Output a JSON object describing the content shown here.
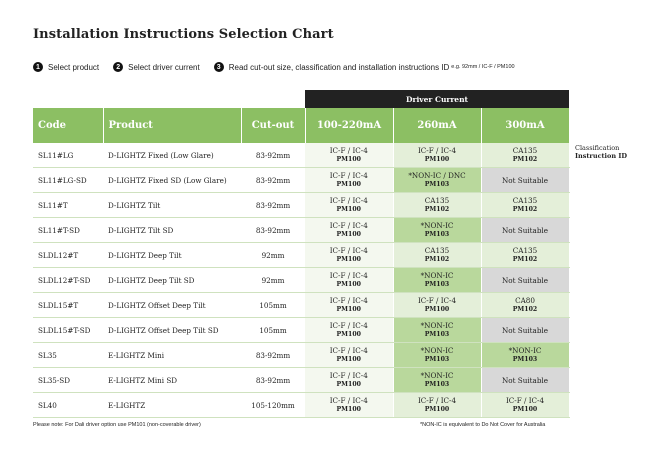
{
  "title": "Installation Instructions Selection Chart",
  "steps": [
    {
      "num": "1",
      "label": "Select product"
    },
    {
      "num": "2",
      "label": "Select driver current"
    },
    {
      "num": "3",
      "label": "Read cut-out size, classification and installation instructions ID"
    }
  ],
  "example": "e.g. 92mm / IC-F / PM100",
  "driver_current_label": "Driver Current",
  "columns": [
    "Code",
    "Product",
    "Cut-out",
    "100-220mA",
    "260mA",
    "300mA"
  ],
  "side_label": {
    "line1": "Classification",
    "line2": "Instruction ID"
  },
  "rows": [
    {
      "code": "SL11#LG",
      "product": "D-LIGHTZ Fixed (Low Glare)",
      "cutout": "83-92mm",
      "d100": {
        "cls": "IC-F / IC-4",
        "id": "PM100"
      },
      "d260": {
        "cls": "IC-F / IC-4",
        "id": "PM100"
      },
      "d300": {
        "cls": "CA135",
        "id": "PM102"
      }
    },
    {
      "code": "SL11#LG-SD",
      "product": "D-LIGHTZ Fixed SD (Low Glare)",
      "cutout": "83-92mm",
      "d100": {
        "cls": "IC-F / IC-4",
        "id": "PM100"
      },
      "d260": {
        "cls": "*NON-IC / DNC",
        "id": "PM103"
      },
      "d300": {
        "cls": "Not Suitable",
        "id": ""
      }
    },
    {
      "code": "SL11#T",
      "product": "D-LIGHTZ Tilt",
      "cutout": "83-92mm",
      "d100": {
        "cls": "IC-F / IC-4",
        "id": "PM100"
      },
      "d260": {
        "cls": "CA135",
        "id": "PM102"
      },
      "d300": {
        "cls": "CA135",
        "id": "PM102"
      }
    },
    {
      "code": "SL11#T-SD",
      "product": "D-LIGHTZ Tilt SD",
      "cutout": "83-92mm",
      "d100": {
        "cls": "IC-F / IC-4",
        "id": "PM100"
      },
      "d260": {
        "cls": "*NON-IC",
        "id": "PM103"
      },
      "d300": {
        "cls": "Not Suitable",
        "id": ""
      }
    },
    {
      "code": "SLDL12#T",
      "product": "D-LIGHTZ Deep Tilt",
      "cutout": "92mm",
      "d100": {
        "cls": "IC-F / IC-4",
        "id": "PM100"
      },
      "d260": {
        "cls": "CA135",
        "id": "PM102"
      },
      "d300": {
        "cls": "CA135",
        "id": "PM102"
      }
    },
    {
      "code": "SLDL12#T-SD",
      "product": "D-LIGHTZ Deep Tilt SD",
      "cutout": "92mm",
      "d100": {
        "cls": "IC-F / IC-4",
        "id": "PM100"
      },
      "d260": {
        "cls": "*NON-IC",
        "id": "PM103"
      },
      "d300": {
        "cls": "Not Suitable",
        "id": ""
      }
    },
    {
      "code": "SLDL15#T",
      "product": "D-LIGHTZ Offset Deep Tilt",
      "cutout": "105mm",
      "d100": {
        "cls": "IC-F / IC-4",
        "id": "PM100"
      },
      "d260": {
        "cls": "IC-F / IC-4",
        "id": "PM100"
      },
      "d300": {
        "cls": "CA80",
        "id": "PM102"
      }
    },
    {
      "code": "SLDL15#T-SD",
      "product": "D-LIGHTZ Offset Deep Tilt SD",
      "cutout": "105mm",
      "d100": {
        "cls": "IC-F / IC-4",
        "id": "PM100"
      },
      "d260": {
        "cls": "*NON-IC",
        "id": "PM103"
      },
      "d300": {
        "cls": "Not Suitable",
        "id": ""
      }
    },
    {
      "code": "SL35",
      "product": "E-LIGHTZ Mini",
      "cutout": "83-92mm",
      "d100": {
        "cls": "IC-F / IC-4",
        "id": "PM100"
      },
      "d260": {
        "cls": "*NON-IC",
        "id": "PM103"
      },
      "d300": {
        "cls": "*NON-IC",
        "id": "PM103"
      }
    },
    {
      "code": "SL35-SD",
      "product": "E-LIGHTZ Mini SD",
      "cutout": "83-92mm",
      "d100": {
        "cls": "IC-F / IC-4",
        "id": "PM100"
      },
      "d260": {
        "cls": "*NON-IC",
        "id": "PM103"
      },
      "d300": {
        "cls": "Not Suitable",
        "id": ""
      }
    },
    {
      "code": "SL40",
      "product": "E-LIGHTZ",
      "cutout": "105-120mm",
      "d100": {
        "cls": "IC-F / IC-4",
        "id": "PM100"
      },
      "d260": {
        "cls": "IC-F / IC-4",
        "id": "PM100"
      },
      "d300": {
        "cls": "IC-F / IC-4",
        "id": "PM100"
      }
    }
  ],
  "footnote_left": "Please note: For Dali driver option use PM101 (non-coverable driver)",
  "footnote_right": "*NON-IC is equivalent to Do Not Cover for Australia",
  "colors": {
    "header_green": "#8cbf63",
    "band_dark": "#222222",
    "not_suitable": "#d8d8d8",
    "non_ic": "#b9d89c",
    "ic_light": "#e4efd9"
  }
}
